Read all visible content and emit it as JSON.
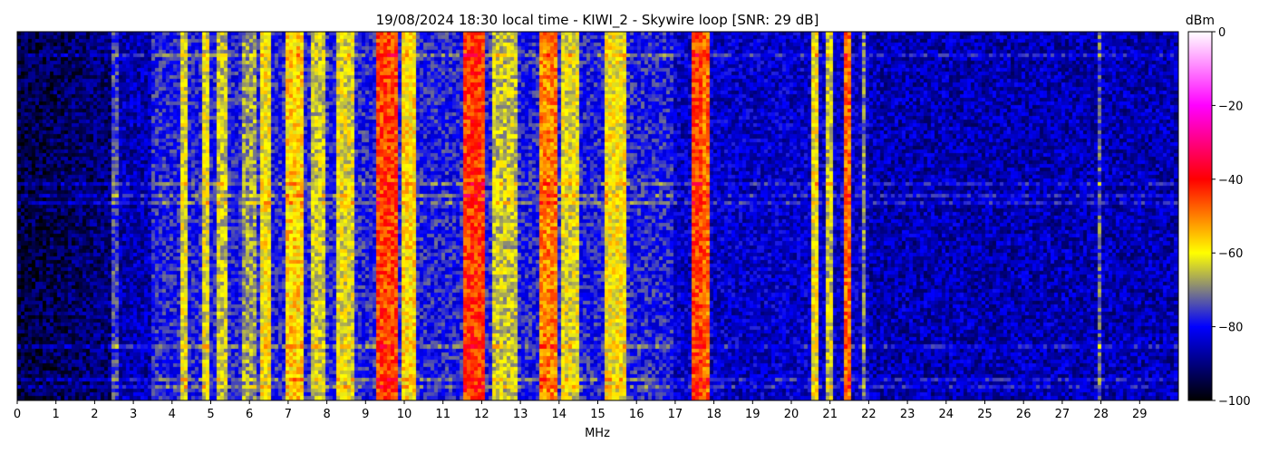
{
  "chart_data": {
    "type": "heatmap",
    "title": "19/08/2024 18:30 local time - KIWI_2 - Skywire loop [SNR: 29 dB]",
    "xlabel": "MHz",
    "ylabel": "",
    "xlim": [
      0,
      30
    ],
    "x_ticks": [
      "0",
      "1",
      "2",
      "3",
      "4",
      "5",
      "6",
      "7",
      "8",
      "9",
      "10",
      "11",
      "12",
      "13",
      "14",
      "15",
      "16",
      "17",
      "18",
      "19",
      "20",
      "21",
      "22",
      "23",
      "24",
      "25",
      "26",
      "27",
      "28",
      "29"
    ],
    "colorbar": {
      "label": "dBm",
      "range": [
        -100,
        0
      ],
      "ticks": [
        "0",
        "−20",
        "−40",
        "−60",
        "−80",
        "−100"
      ],
      "colors": [
        "#000000",
        "#0000ff",
        "#ffff00",
        "#ff0000",
        "#ff00ff",
        "#ffffff"
      ]
    },
    "bands": [
      {
        "mhz": 2.55,
        "width": 0.04,
        "level": -75
      },
      {
        "mhz": 3.9,
        "width": 0.3,
        "level": -78
      },
      {
        "mhz": 4.3,
        "width": 0.05,
        "level": -62
      },
      {
        "mhz": 4.9,
        "width": 0.05,
        "level": -62
      },
      {
        "mhz": 5.3,
        "width": 0.1,
        "level": -64
      },
      {
        "mhz": 6.0,
        "width": 0.2,
        "level": -68
      },
      {
        "mhz": 6.4,
        "width": 0.2,
        "level": -60
      },
      {
        "mhz": 7.2,
        "width": 0.35,
        "level": -57
      },
      {
        "mhz": 7.8,
        "width": 0.25,
        "level": -64
      },
      {
        "mhz": 8.5,
        "width": 0.35,
        "level": -62
      },
      {
        "mhz": 9.55,
        "width": 0.45,
        "level": -45
      },
      {
        "mhz": 10.1,
        "width": 0.3,
        "level": -58
      },
      {
        "mhz": 11.8,
        "width": 0.45,
        "level": -44
      },
      {
        "mhz": 12.6,
        "width": 0.6,
        "level": -64
      },
      {
        "mhz": 13.75,
        "width": 0.3,
        "level": -50
      },
      {
        "mhz": 14.3,
        "width": 0.3,
        "level": -62
      },
      {
        "mhz": 15.5,
        "width": 0.45,
        "level": -60
      },
      {
        "mhz": 17.55,
        "width": 0.15,
        "level": -45
      },
      {
        "mhz": 17.8,
        "width": 0.15,
        "level": -48
      },
      {
        "mhz": 20.6,
        "width": 0.05,
        "level": -60
      },
      {
        "mhz": 21.0,
        "width": 0.05,
        "level": -64
      },
      {
        "mhz": 21.45,
        "width": 0.06,
        "level": -48
      },
      {
        "mhz": 21.9,
        "width": 0.05,
        "level": -70
      },
      {
        "mhz": 28.0,
        "width": 0.04,
        "level": -72
      }
    ]
  }
}
